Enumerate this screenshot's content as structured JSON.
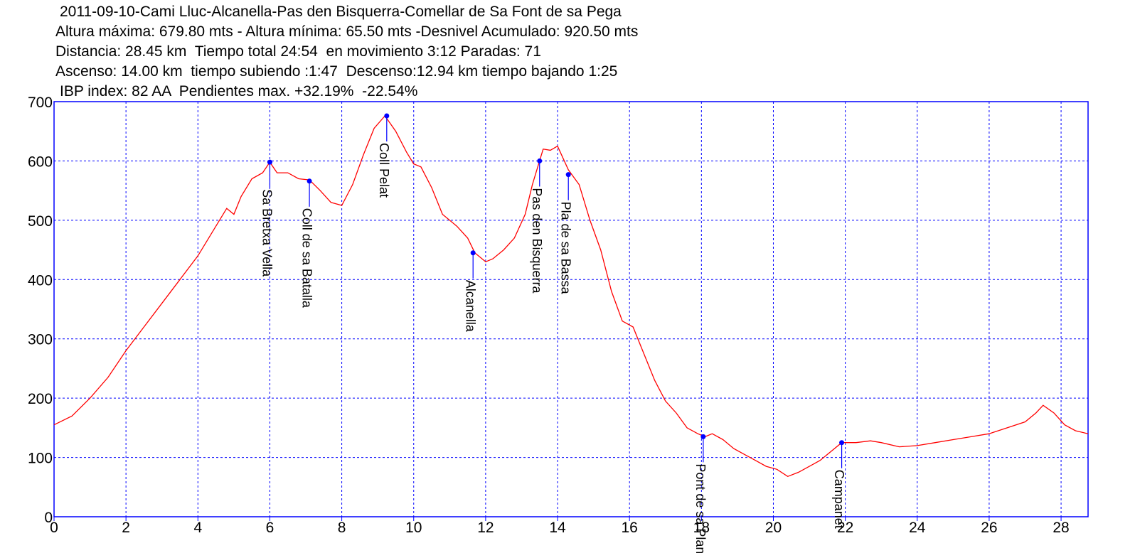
{
  "header": {
    "line1": "2011-09-10-Cami Lluc-Alcanella-Pas den Bisquerra-Comellar de Sa Font de sa Pega",
    "line2": "Altura máxima: 679.80 mts - Altura mínima: 65.50 mts -Desnivel Acumulado: 920.50 mts",
    "line3": "Distancia: 28.45 km  Tiempo total 24:54  en movimiento 3:12 Paradas: 71",
    "line4": "Ascenso: 14.00 km  tiempo subiendo :1:47  Descenso:12.94 km tiempo bajando 1:25",
    "line5": "IBP index: 82 AA  Pendientes max. +32.19%  -22.54%"
  },
  "chart_data": {
    "type": "line",
    "xlim": [
      0,
      28.75
    ],
    "ylim": [
      0,
      700
    ],
    "x_ticks": [
      0,
      2,
      4,
      6,
      8,
      10,
      12,
      14,
      16,
      18,
      20,
      22,
      24,
      26,
      28
    ],
    "y_ticks": [
      0,
      100,
      200,
      300,
      400,
      500,
      600,
      700
    ],
    "grid": true,
    "colors": {
      "line": "#ff0000",
      "axis": "#0000ff",
      "grid": "#0000ff",
      "waypoint": "#0000ff"
    },
    "series": [
      {
        "x": [
          0,
          0.5,
          1,
          1.5,
          2,
          2.5,
          3,
          3.5,
          4,
          4.5,
          4.8,
          5.0,
          5.2,
          5.5,
          5.8,
          6.0,
          6.2,
          6.5,
          6.8,
          7.1,
          7.4,
          7.7,
          8.0,
          8.3,
          8.6,
          8.9,
          9.2,
          9.5,
          9.8,
          10.0,
          10.2,
          10.5,
          10.8,
          11.2,
          11.5,
          11.7,
          12.0,
          12.2,
          12.5,
          12.8,
          13.1,
          13.3,
          13.5,
          13.6,
          13.8,
          14.0,
          14.3,
          14.6,
          14.9,
          15.2,
          15.5,
          15.8,
          16.1,
          16.4,
          16.7,
          17.0,
          17.3,
          17.6,
          17.9,
          18.1,
          18.3,
          18.6,
          18.9,
          19.2,
          19.5,
          19.8,
          20.1,
          20.4,
          20.7,
          21.0,
          21.3,
          21.6,
          21.9,
          22.3,
          22.7,
          23.0,
          23.5,
          24.0,
          24.5,
          25.0,
          25.5,
          26.0,
          26.5,
          27.0,
          27.3,
          27.5,
          27.8,
          28.1,
          28.4,
          28.75
        ],
        "y": [
          155,
          170,
          200,
          235,
          280,
          320,
          360,
          400,
          440,
          490,
          520,
          510,
          540,
          570,
          580,
          598,
          580,
          580,
          570,
          568,
          550,
          530,
          525,
          560,
          610,
          655,
          676,
          650,
          615,
          595,
          590,
          555,
          510,
          490,
          470,
          445,
          430,
          435,
          450,
          470,
          510,
          560,
          600,
          620,
          618,
          625,
          585,
          560,
          500,
          450,
          380,
          330,
          320,
          275,
          230,
          195,
          175,
          150,
          140,
          135,
          140,
          130,
          115,
          105,
          95,
          85,
          80,
          68,
          75,
          85,
          95,
          110,
          125,
          125,
          128,
          125,
          118,
          120,
          125,
          130,
          135,
          140,
          150,
          160,
          175,
          188,
          175,
          155,
          145,
          140
        ]
      }
    ],
    "waypoints": [
      {
        "name": "Sa Bretxa Vella",
        "x": 6.0,
        "y": 598
      },
      {
        "name": "Coll de sa Batalla",
        "x": 7.1,
        "y": 566
      },
      {
        "name": "Coll Pelat",
        "x": 9.25,
        "y": 676
      },
      {
        "name": "Alcanella",
        "x": 11.65,
        "y": 445
      },
      {
        "name": "Pas den Bisquerra",
        "x": 13.5,
        "y": 600
      },
      {
        "name": "Pla de sa Bassa",
        "x": 14.3,
        "y": 577
      },
      {
        "name": "Pont de sa Plana",
        "x": 18.05,
        "y": 135
      },
      {
        "name": "Campanet",
        "x": 21.9,
        "y": 125
      }
    ]
  }
}
